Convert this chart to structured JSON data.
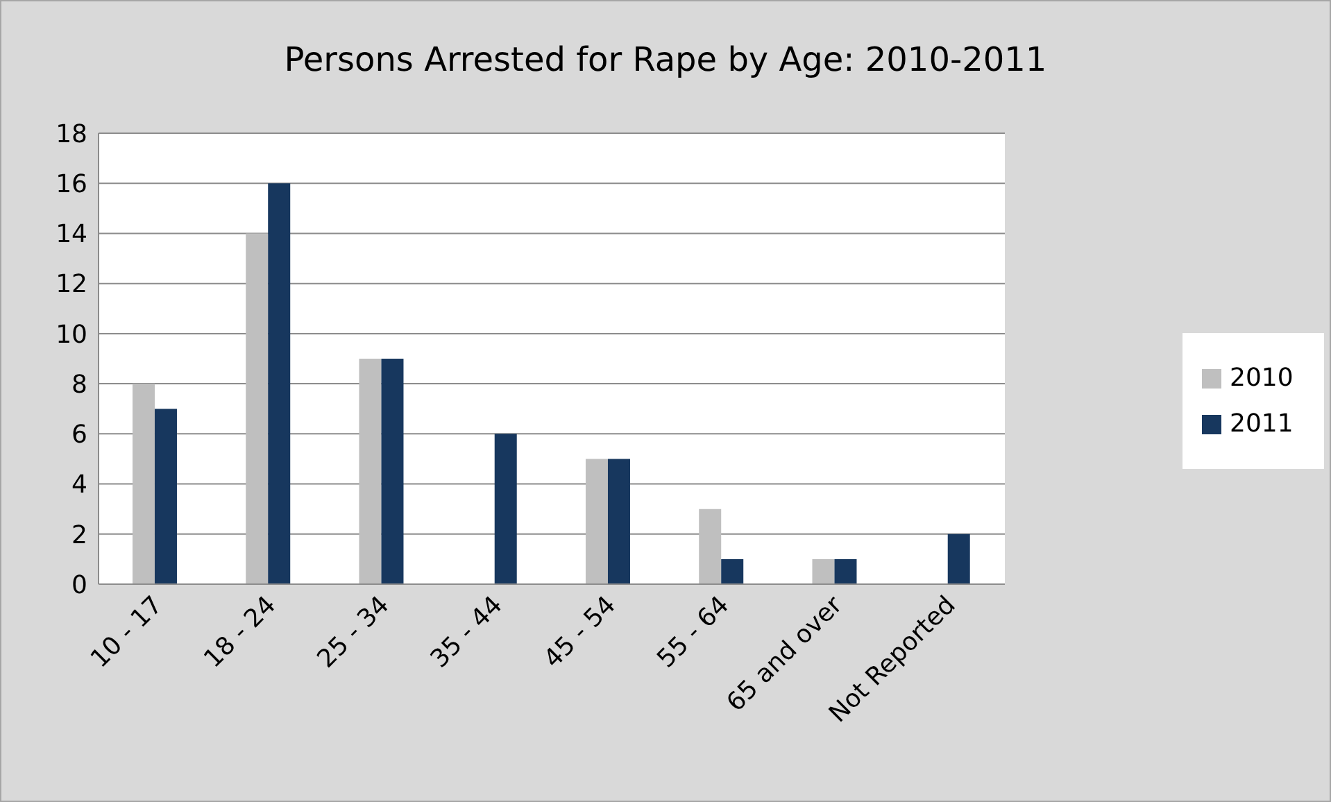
{
  "chart_data": {
    "type": "bar",
    "title": "Persons Arrested for Rape by Age: 2010-2011",
    "categories": [
      "10 - 17",
      "18 - 24",
      "25 - 34",
      "35 - 44",
      "45 - 54",
      "55 - 64",
      "65 and over",
      "Not Reported"
    ],
    "series": [
      {
        "name": "2010",
        "color": "#bfbfbf",
        "values": [
          8,
          14,
          9,
          0,
          5,
          3,
          1,
          0
        ]
      },
      {
        "name": "2011",
        "color": "#17375e",
        "values": [
          7,
          16,
          9,
          6,
          5,
          1,
          1,
          2
        ]
      }
    ],
    "ylim": [
      0,
      18
    ],
    "yticks": [
      0,
      2,
      4,
      6,
      8,
      10,
      12,
      14,
      16,
      18
    ],
    "grid": "y",
    "legend": "right"
  }
}
